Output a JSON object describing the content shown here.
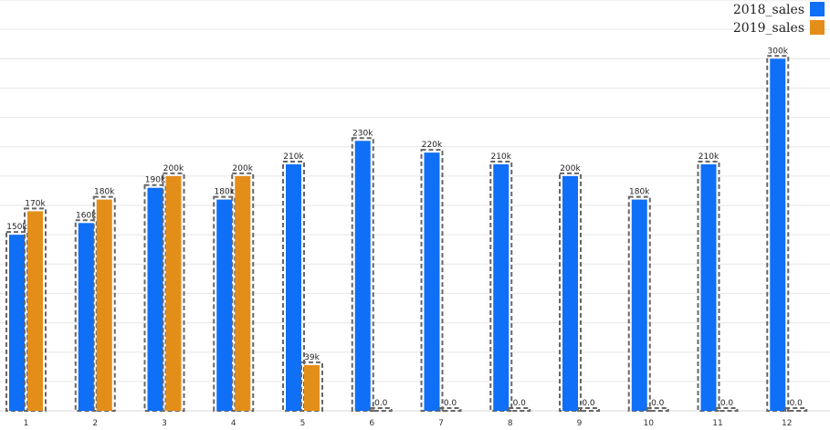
{
  "chart_data": {
    "type": "bar",
    "categories": [
      "1",
      "2",
      "3",
      "4",
      "5",
      "6",
      "7",
      "8",
      "9",
      "10",
      "11",
      "12"
    ],
    "series": [
      {
        "name": "2018_sales",
        "color": "#0f6ff7",
        "values": [
          150000,
          160000,
          190000,
          180000,
          210000,
          230000,
          220000,
          210000,
          200000,
          180000,
          210000,
          300000
        ],
        "labels": [
          "150k",
          "160k",
          "190k",
          "180k",
          "210k",
          "230k",
          "220k",
          "210k",
          "200k",
          "180k",
          "210k",
          "300k"
        ]
      },
      {
        "name": "2019_sales",
        "color": "#e48e1a",
        "values": [
          170000,
          180000,
          200000,
          200000,
          39000,
          0,
          0,
          0,
          0,
          0,
          0,
          0
        ],
        "labels": [
          "170k",
          "180k",
          "200k",
          "200k",
          "39k",
          "0.0",
          "0.0",
          "0.0",
          "0.0",
          "0.0",
          "0.0",
          "0.0"
        ]
      }
    ],
    "ylim": [
      0,
      300000
    ],
    "grid": true,
    "legend_position": "top-right",
    "bar_outline": "dashed"
  }
}
